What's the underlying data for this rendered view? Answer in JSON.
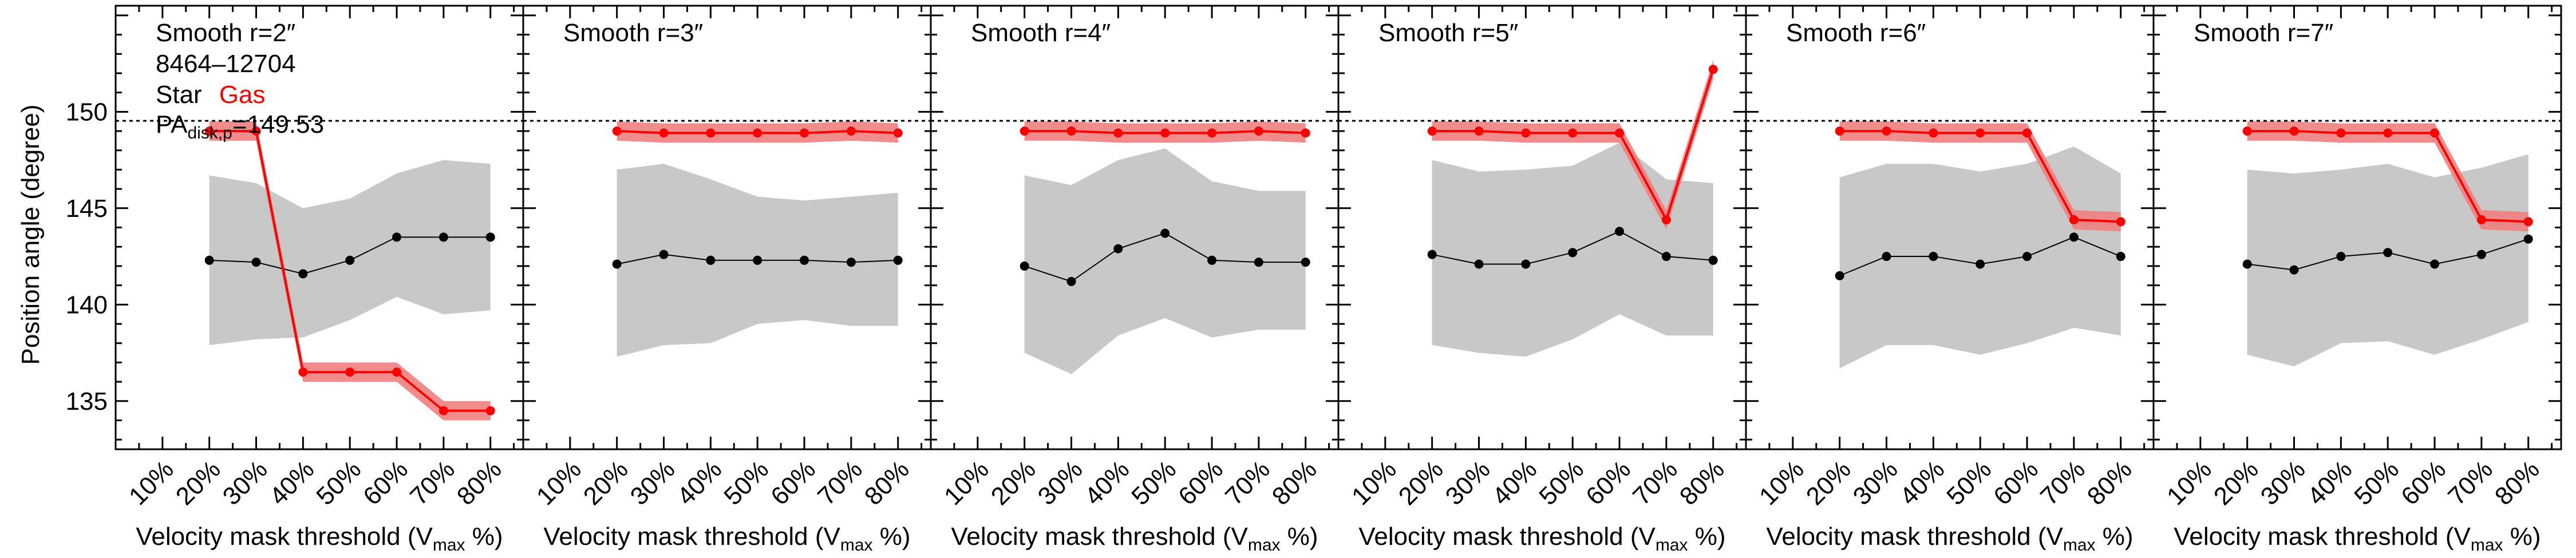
{
  "figure_id": "8464–12704",
  "ylabel": "Position angle (degree)",
  "xlabel": "Velocity mask threshold (V",
  "xlabel_sub": "max",
  "xlabel_end": " %)",
  "legend": {
    "star": "Star",
    "gas": "Gas"
  },
  "pa_label": {
    "main": "PA",
    "sub": "disk,p",
    "value": "=149.53"
  },
  "colors": {
    "star": "#000000",
    "star_band": "#c8c8c8",
    "gas": "#ff0000",
    "gas_band": "#f08080"
  },
  "chart_data": {
    "type": "line",
    "x_ticks": [
      "10%",
      "20%",
      "30%",
      "40%",
      "50%",
      "60%",
      "70%",
      "80%"
    ],
    "x": [
      20,
      30,
      40,
      50,
      60,
      70,
      80
    ],
    "xlim": [
      0,
      87
    ],
    "ylim": [
      132.5,
      155.5
    ],
    "y_ticks": [
      135,
      140,
      145,
      150
    ],
    "reference_line": 149.53,
    "grid": false,
    "panels": [
      {
        "title": "Smooth r=2″",
        "star": [
          142.3,
          142.2,
          141.6,
          142.3,
          143.5,
          143.5,
          143.5
        ],
        "star_upper": [
          146.7,
          146.3,
          145.0,
          145.5,
          146.8,
          147.5,
          147.3
        ],
        "star_lower": [
          137.9,
          138.2,
          138.3,
          139.2,
          140.4,
          139.5,
          139.7
        ],
        "gas": [
          149.0,
          149.0,
          136.5,
          136.5,
          136.5,
          134.5,
          134.5
        ],
        "gas_err": 0.5
      },
      {
        "title": "Smooth r=3″",
        "star": [
          142.1,
          142.6,
          142.3,
          142.3,
          142.3,
          142.2,
          142.3
        ],
        "star_upper": [
          147.0,
          147.3,
          146.5,
          145.6,
          145.4,
          145.6,
          145.8
        ],
        "star_lower": [
          137.3,
          137.9,
          138.0,
          139.0,
          139.2,
          138.9,
          138.9
        ],
        "gas": [
          149.0,
          148.9,
          148.9,
          148.9,
          148.9,
          149.0,
          148.9
        ],
        "gas_err": 0.5
      },
      {
        "title": "Smooth r=4″",
        "star": [
          142.0,
          141.2,
          142.9,
          143.7,
          142.3,
          142.2,
          142.2
        ],
        "star_upper": [
          146.7,
          146.2,
          147.5,
          148.1,
          146.4,
          145.9,
          145.9
        ],
        "star_lower": [
          137.5,
          136.4,
          138.4,
          139.3,
          138.3,
          138.7,
          138.7
        ],
        "gas": [
          149.0,
          149.0,
          148.9,
          148.9,
          148.9,
          149.0,
          148.9
        ],
        "gas_err": 0.5
      },
      {
        "title": "Smooth r=5″",
        "star": [
          142.6,
          142.1,
          142.1,
          142.7,
          143.8,
          142.5,
          142.3
        ],
        "star_upper": [
          147.5,
          146.9,
          147.0,
          147.2,
          148.4,
          146.5,
          146.3
        ],
        "star_lower": [
          137.9,
          137.5,
          137.3,
          138.2,
          139.5,
          138.4,
          138.4
        ],
        "gas": [
          149.0,
          149.0,
          148.9,
          148.9,
          148.9,
          144.4,
          152.2
        ],
        "gas_err": 0.5
      },
      {
        "title": "Smooth r=6″",
        "star": [
          141.5,
          142.5,
          142.5,
          142.1,
          142.5,
          143.5,
          142.5
        ],
        "star_upper": [
          146.6,
          147.3,
          147.3,
          146.9,
          147.3,
          148.2,
          146.8
        ],
        "star_lower": [
          136.7,
          137.9,
          137.9,
          137.4,
          138.0,
          138.8,
          138.4
        ],
        "gas": [
          149.0,
          149.0,
          148.9,
          148.9,
          148.9,
          144.4,
          144.3
        ],
        "gas_err": 0.5
      },
      {
        "title": "Smooth r=7″",
        "star": [
          142.1,
          141.8,
          142.5,
          142.7,
          142.1,
          142.6,
          143.4
        ],
        "star_upper": [
          147.0,
          146.8,
          147.0,
          147.3,
          146.6,
          147.1,
          147.8
        ],
        "star_lower": [
          137.4,
          136.8,
          138.0,
          138.1,
          137.4,
          138.2,
          139.1
        ],
        "gas": [
          149.0,
          149.0,
          148.9,
          148.9,
          148.9,
          144.4,
          144.3
        ],
        "gas_err": 0.5
      }
    ]
  }
}
